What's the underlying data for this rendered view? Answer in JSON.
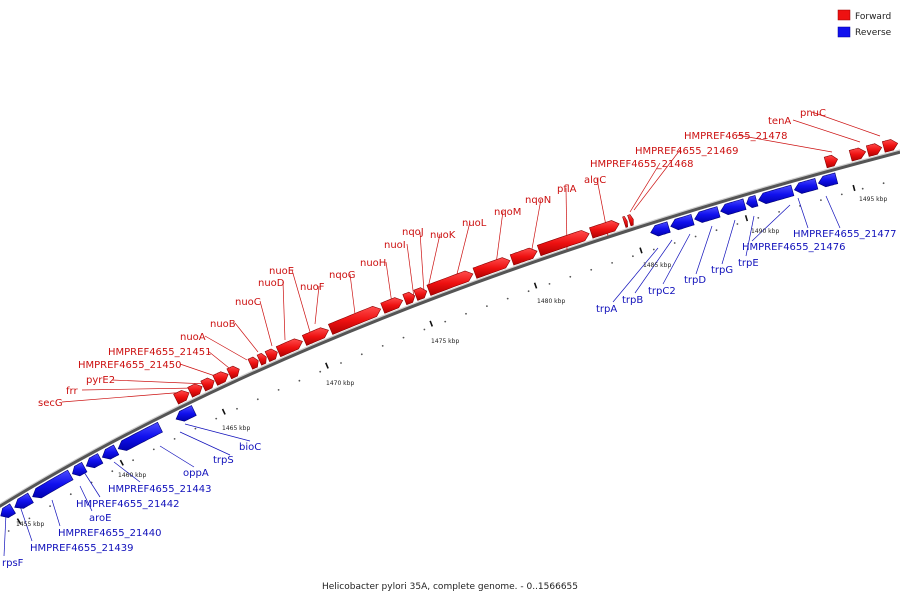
{
  "caption": "Helicobacter pylori 35A, complete genome. - 0..1566655",
  "colors": {
    "forward": "#ee1111",
    "forward_dark": "#aa0000",
    "reverse": "#1111ee",
    "reverse_dark": "#0000aa",
    "backbone": "#888888",
    "forward_label": "#cc1111",
    "reverse_label": "#1111bb"
  },
  "legend": [
    {
      "name": "forward",
      "label": "Forward",
      "color": "#ee1111"
    },
    {
      "name": "reverse",
      "label": "Reverse",
      "color": "#1111ee"
    }
  ],
  "ticks_kbp": [
    "1455 kbp",
    "1460 kbp",
    "1465 kbp",
    "1470 kbp",
    "1475 kbp",
    "1480 kbp",
    "1485 kbp",
    "1490 kbp",
    "1495 kbp"
  ],
  "forward_genes": [
    "secG",
    "frr",
    "pyrE2",
    "HMPREF4655_21450",
    "HMPREF4655_21451",
    "nuoA",
    "nuoB",
    "nuoC",
    "nuoD",
    "nuoE",
    "nuoF",
    "nqoG",
    "nuoH",
    "nuoI",
    "nqoJ",
    "nuoK",
    "nuoL",
    "nqoM",
    "nqoN",
    "pflA",
    "algC",
    "HMPREF4655_21468",
    "HMPREF4655_21469",
    "HMPREF4655_21478",
    "tenA",
    "pnuC"
  ],
  "reverse_genes": [
    "rpsF",
    "HMPREF4655_21439",
    "HMPREF4655_21440",
    "aroE",
    "HMPREF4655_21442",
    "HMPREF4655_21443",
    "oppA",
    "trpS",
    "bioC",
    "trpA",
    "trpB",
    "trpC2",
    "trpD",
    "trpG",
    "trpE",
    "HMPREF4655_21476",
    "HMPREF4655_21477"
  ]
}
